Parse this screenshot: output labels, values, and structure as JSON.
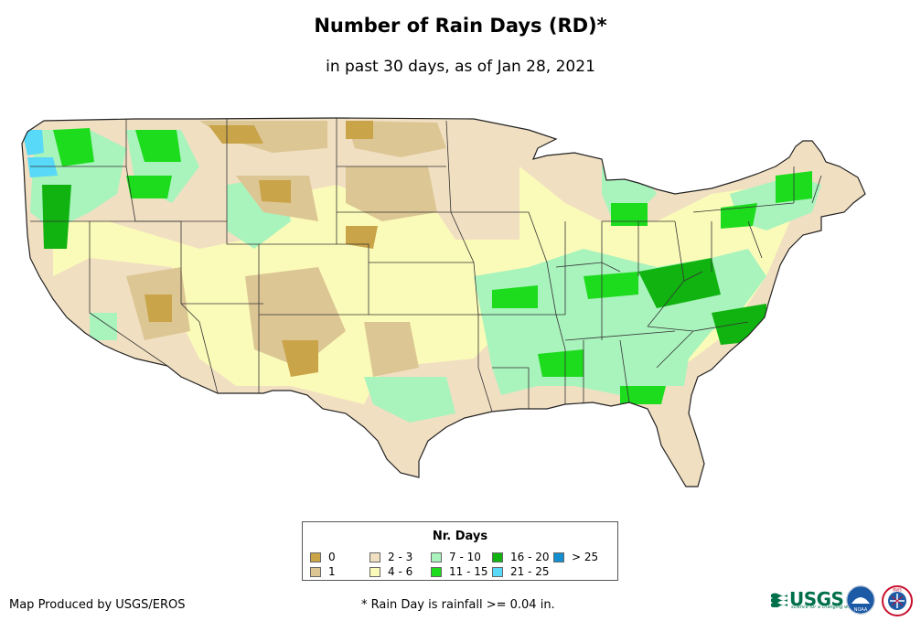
{
  "title": "Number of Rain Days (RD)*",
  "subtitle": "in past 30 days, as of Jan 28, 2021",
  "legend": {
    "title": "Nr. Days",
    "items": [
      {
        "label": "0",
        "color": "#c9a449"
      },
      {
        "label": "1",
        "color": "#dcc694"
      },
      {
        "label": "2 - 3",
        "color": "#f1dfc2"
      },
      {
        "label": "4 - 6",
        "color": "#fbfbb9"
      },
      {
        "label": "7 - 10",
        "color": "#a9f3bd"
      },
      {
        "label": "11 - 15",
        "color": "#1ddc1d"
      },
      {
        "label": "16 - 20",
        "color": "#10b310"
      },
      {
        "label": "21 - 25",
        "color": "#57d9f7"
      },
      {
        "label": "> 25",
        "color": "#128fd0"
      }
    ]
  },
  "credit": "Map Produced by USGS/EROS",
  "footnote": "* Rain Day is rainfall >= 0.04 in.",
  "logos": {
    "usgs_text": "USGS",
    "usgs_tagline": "science for a changing world",
    "noaa_text": "NOAA",
    "nws_text": "NWS"
  }
}
